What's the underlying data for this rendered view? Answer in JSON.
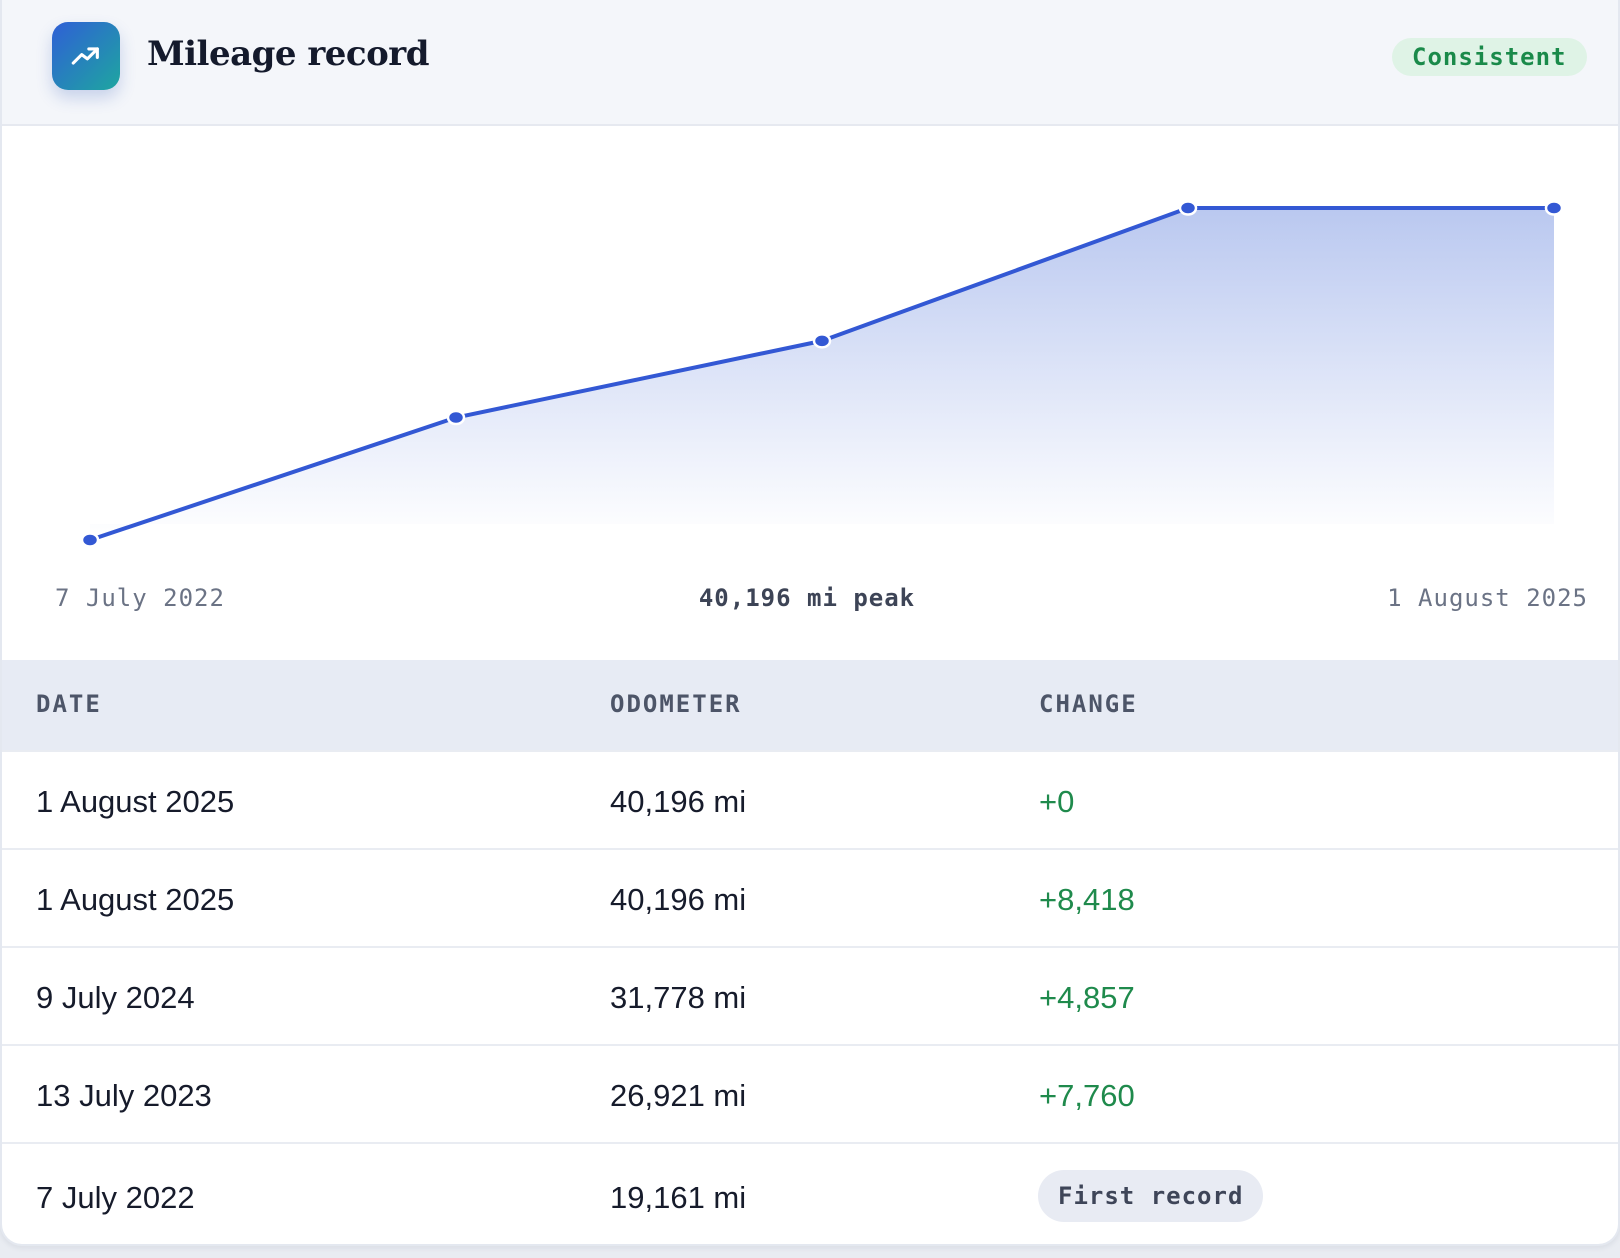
{
  "header": {
    "title": "Mileage record",
    "status_badge": "Consistent",
    "icon": "trending-up-icon"
  },
  "chart": {
    "start_label": "7 July 2022",
    "peak_label": "40,196 mi peak",
    "end_label": "1 August 2025"
  },
  "chart_data": {
    "type": "area",
    "x": [
      "7 July 2022",
      "13 July 2023",
      "9 July 2024",
      "1 August 2025",
      "1 August 2025"
    ],
    "values": [
      19161,
      26921,
      31778,
      40196,
      40196
    ],
    "unit": "mi",
    "line_color": "#3358d4",
    "fill_color": "#bccbf0"
  },
  "table": {
    "headers": {
      "date": "DATE",
      "odometer": "ODOMETER",
      "change": "CHANGE"
    },
    "rows": [
      {
        "date": "1 August 2025",
        "odometer": "40,196 mi",
        "change": "+0"
      },
      {
        "date": "1 August 2025",
        "odometer": "40,196 mi",
        "change": "+8,418"
      },
      {
        "date": "9 July 2024",
        "odometer": "31,778 mi",
        "change": "+4,857"
      },
      {
        "date": "13 July 2023",
        "odometer": "26,921 mi",
        "change": "+7,760"
      },
      {
        "date": "7 July 2022",
        "odometer": "19,161 mi",
        "change": "First record"
      }
    ]
  },
  "colors": {
    "accent": "#3358d4",
    "positive": "#1f8a4c",
    "badge_bg": "#dff3e6"
  }
}
